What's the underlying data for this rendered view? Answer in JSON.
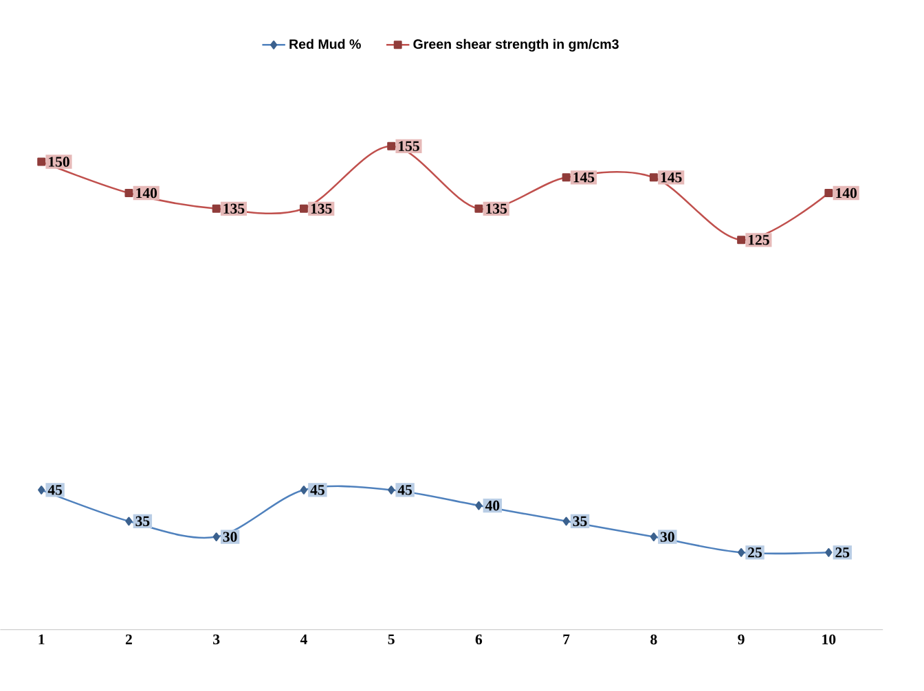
{
  "chart_data": {
    "type": "line",
    "categories": [
      "1",
      "2",
      "3",
      "4",
      "5",
      "6",
      "7",
      "8",
      "9",
      "10"
    ],
    "series": [
      {
        "name": "Red Mud %",
        "color": "#4f81bd",
        "marker": "diamond",
        "values": [
          45,
          35,
          30,
          45,
          45,
          40,
          35,
          30,
          25,
          25
        ]
      },
      {
        "name": "Green shear strength in gm/cm3",
        "color": "#c0504d",
        "marker": "square",
        "values": [
          150,
          140,
          135,
          135,
          155,
          135,
          145,
          145,
          125,
          140
        ]
      }
    ],
    "data_labels": true,
    "legend": "top",
    "grid": false,
    "tick_labels": "x"
  }
}
